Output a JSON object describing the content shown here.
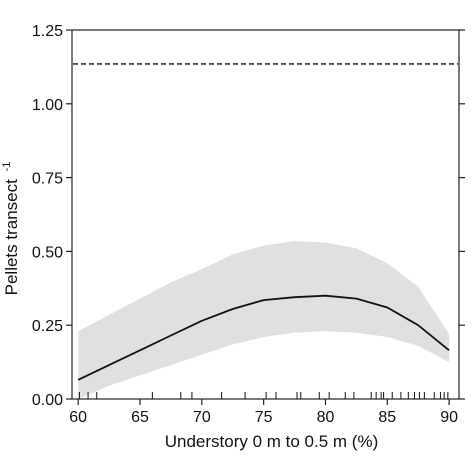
{
  "chart_data": {
    "type": "line",
    "title": "",
    "xlabel": "Understory 0 m to 0.5 m (%)",
    "ylabel": "Pellets transect",
    "ylabel_superscript": "-1",
    "xlim": [
      59.5,
      90.8
    ],
    "ylim": [
      0,
      1.25
    ],
    "x_ticks": [
      "60",
      "65",
      "70",
      "75",
      "80",
      "85",
      "90"
    ],
    "y_ticks": [
      "0.00",
      "0.25",
      "0.50",
      "0.75",
      "1.00",
      "1.25"
    ],
    "grid": false,
    "legend": "none",
    "reference_line": {
      "y": 1.135,
      "style": "dashed"
    },
    "series": [
      {
        "values_x": [
          60,
          62.5,
          65,
          67.5,
          70,
          72.5,
          75,
          77.5,
          80,
          82.5,
          85,
          87.5,
          90
        ],
        "values_y": [
          0.065,
          0.115,
          0.165,
          0.215,
          0.265,
          0.305,
          0.335,
          0.345,
          0.35,
          0.34,
          0.31,
          0.25,
          0.165
        ]
      }
    ],
    "confidence_band": {
      "x": [
        60,
        62.5,
        65,
        67.5,
        70,
        72.5,
        75,
        77.5,
        80,
        82.5,
        85,
        87.5,
        90
      ],
      "lower": [
        0,
        0.045,
        0.08,
        0.115,
        0.15,
        0.185,
        0.21,
        0.225,
        0.23,
        0.225,
        0.21,
        0.18,
        0.125
      ],
      "upper": [
        0.23,
        0.285,
        0.34,
        0.395,
        0.44,
        0.49,
        0.52,
        0.535,
        0.53,
        0.51,
        0.46,
        0.38,
        0.22
      ]
    },
    "rug": [
      60.1,
      60.8,
      61.5,
      66.0,
      68.3,
      69.2,
      71.6,
      73.5,
      75.2,
      76.0,
      77.7,
      78.0,
      79.5,
      80.3,
      81.6,
      82.3,
      83.7,
      84.1,
      84.5,
      84.7,
      85.4,
      86.1,
      86.7,
      87.2,
      87.6,
      88.0,
      88.8,
      89.3,
      89.6,
      89.9
    ],
    "colors": {
      "line": "#111111",
      "band": "#dfe1e1",
      "axis": "#222222"
    }
  }
}
